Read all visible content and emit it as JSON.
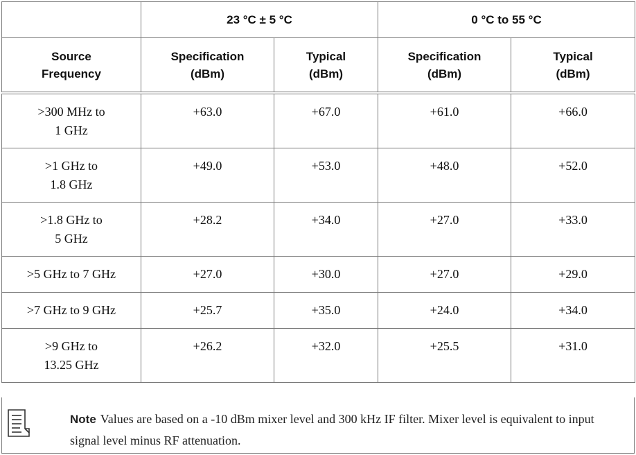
{
  "header": {
    "source_frequency": [
      "Source",
      "Frequency"
    ],
    "group_a": "23 °C ± 5 °C",
    "group_b": "0 °C to 55 °C",
    "spec_label": [
      "Specification",
      "(dBm)"
    ],
    "typical_label": [
      "Typical",
      "(dBm)"
    ]
  },
  "rows": [
    {
      "freq": [
        ">300 MHz to",
        "1 GHz"
      ],
      "spec_a": "+63.0",
      "typ_a": "+67.0",
      "spec_b": "+61.0",
      "typ_b": "+66.0"
    },
    {
      "freq": [
        ">1 GHz to",
        "1.8 GHz"
      ],
      "spec_a": "+49.0",
      "typ_a": "+53.0",
      "spec_b": "+48.0",
      "typ_b": "+52.0"
    },
    {
      "freq": [
        ">1.8 GHz to",
        "5 GHz"
      ],
      "spec_a": "+28.2",
      "typ_a": "+34.0",
      "spec_b": "+27.0",
      "typ_b": "+33.0"
    },
    {
      "freq": [
        ">5 GHz to 7 GHz"
      ],
      "spec_a": "+27.0",
      "typ_a": "+30.0",
      "spec_b": "+27.0",
      "typ_b": "+29.0"
    },
    {
      "freq": [
        ">7 GHz to 9 GHz"
      ],
      "spec_a": "+25.7",
      "typ_a": "+35.0",
      "spec_b": "+24.0",
      "typ_b": "+34.0"
    },
    {
      "freq": [
        ">9 GHz to",
        "13.25 GHz"
      ],
      "spec_a": "+26.2",
      "typ_a": "+32.0",
      "spec_b": "+25.5",
      "typ_b": "+31.0"
    }
  ],
  "note": {
    "icon": "note-icon",
    "label": "Note",
    "text": "Values are based on a -10 dBm mixer level and 300 kHz IF filter. Mixer level is equivalent to input signal level minus RF attenuation."
  }
}
